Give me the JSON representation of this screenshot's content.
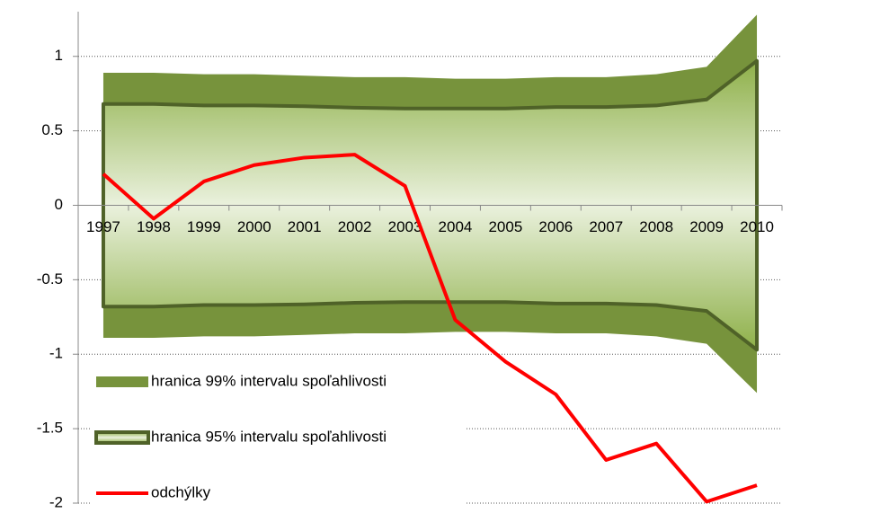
{
  "chart_data": {
    "type": "line",
    "categories": [
      "1997",
      "1998",
      "1999",
      "2000",
      "2001",
      "2002",
      "2003",
      "2004",
      "2005",
      "2006",
      "2007",
      "2008",
      "2009",
      "2010"
    ],
    "ylim": [
      -2,
      1.3
    ],
    "yticks": [
      -2,
      -1.5,
      -1,
      -0.5,
      0,
      0.5,
      1
    ],
    "grid": true,
    "legend": "lower left",
    "series": [
      {
        "name": "hranica 99% intervalu spoľahlivosti",
        "kind": "band",
        "color": "#77933c",
        "values": [
          0.89,
          0.89,
          0.88,
          0.88,
          0.87,
          0.86,
          0.86,
          0.85,
          0.85,
          0.86,
          0.86,
          0.88,
          0.93,
          1.28
        ],
        "lower": [
          -0.89,
          -0.89,
          -0.88,
          -0.88,
          -0.87,
          -0.86,
          -0.86,
          -0.85,
          -0.85,
          -0.86,
          -0.86,
          -0.88,
          -0.93,
          -1.26
        ]
      },
      {
        "name": "hranica 95% intervalu spoľahlivosti",
        "kind": "band",
        "color": "#9bbb59",
        "border": "#4f6228",
        "values": [
          0.68,
          0.68,
          0.67,
          0.67,
          0.665,
          0.655,
          0.65,
          0.65,
          0.65,
          0.66,
          0.66,
          0.67,
          0.71,
          0.97
        ],
        "lower": [
          -0.68,
          -0.68,
          -0.67,
          -0.67,
          -0.665,
          -0.655,
          -0.65,
          -0.65,
          -0.65,
          -0.66,
          -0.66,
          -0.67,
          -0.71,
          -0.97
        ]
      },
      {
        "name": "odchýlky",
        "kind": "line",
        "color": "#ff0000",
        "values": [
          0.21,
          -0.09,
          0.16,
          0.27,
          0.32,
          0.34,
          0.13,
          -0.77,
          -1.05,
          -1.27,
          -1.71,
          -1.6,
          -1.99,
          -1.88
        ]
      }
    ]
  }
}
